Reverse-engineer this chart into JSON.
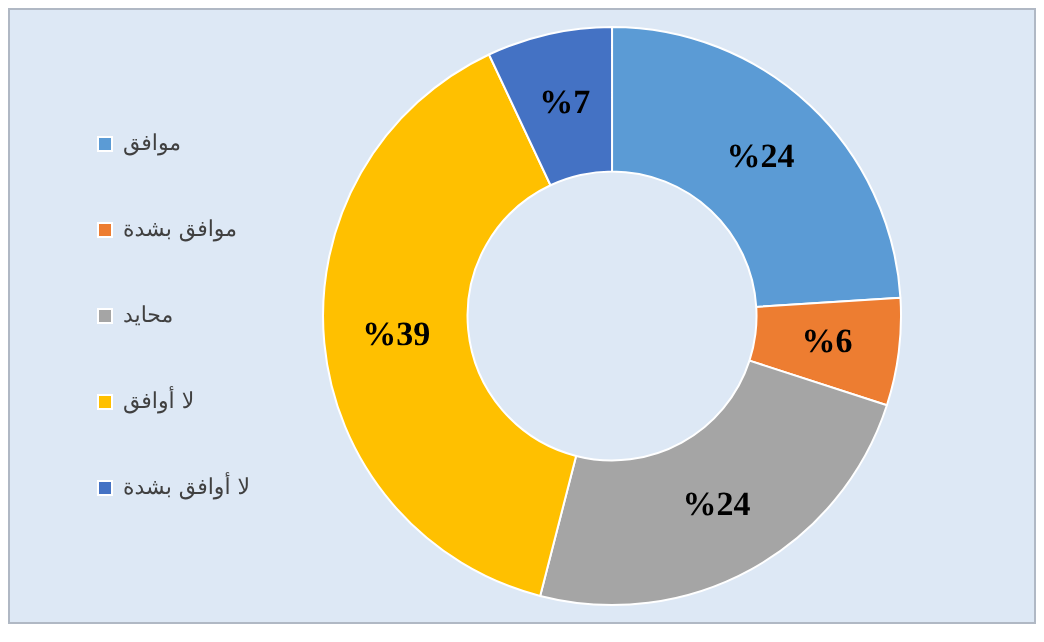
{
  "chart_data": {
    "type": "donut",
    "categories": [
      "موافق",
      "موافق بشدة",
      "محايد",
      "لا أوافق",
      "لا أوافق بشدة"
    ],
    "values": [
      24,
      6,
      24,
      39,
      7
    ],
    "colors": [
      "#5b9bd5",
      "#ed7d31",
      "#a5a5a5",
      "#ffc000",
      "#4472c4"
    ],
    "value_labels": [
      "%24",
      "%6",
      "%24",
      "%39",
      "%7"
    ],
    "legend": "left"
  }
}
